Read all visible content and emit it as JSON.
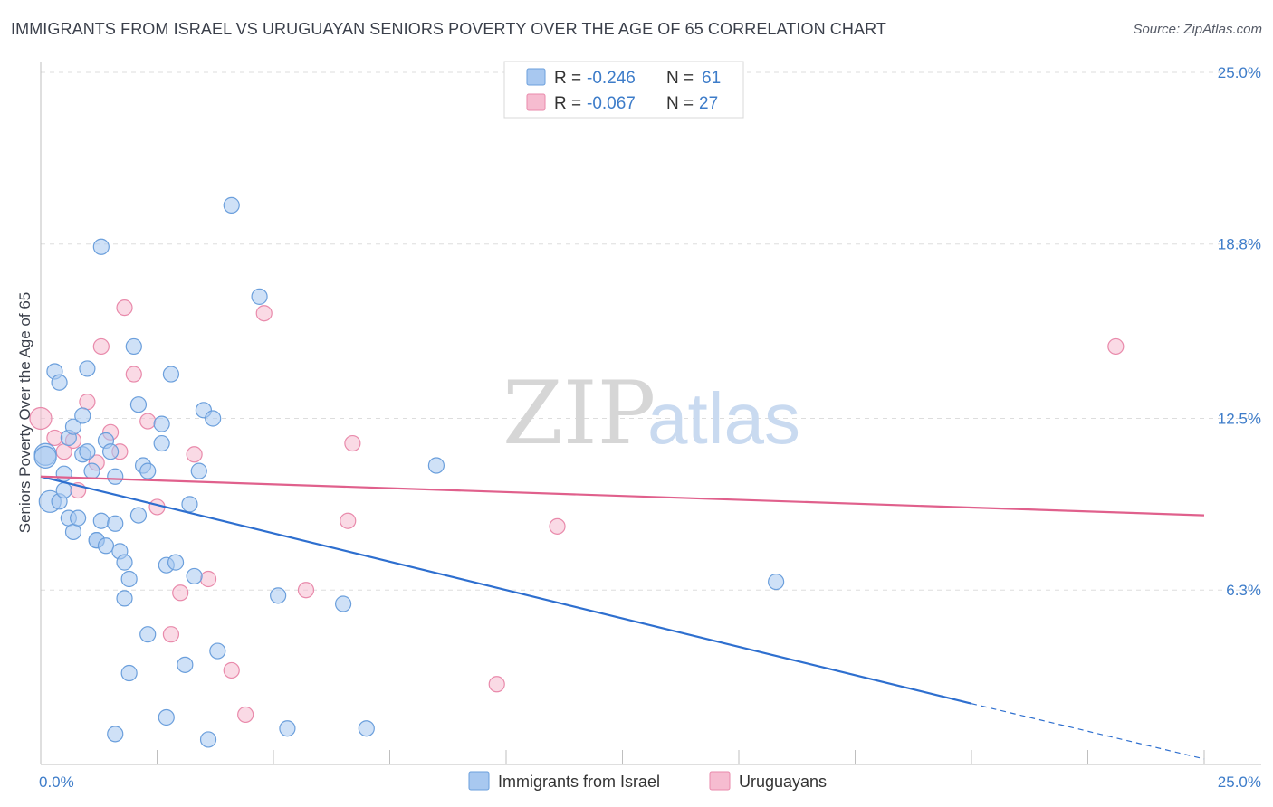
{
  "title": "IMMIGRANTS FROM ISRAEL VS URUGUAYAN SENIORS POVERTY OVER THE AGE OF 65 CORRELATION CHART",
  "source": "Source: ZipAtlas.com",
  "watermark": {
    "zip": "ZIP",
    "atlas": "atlas"
  },
  "colors": {
    "blue_fill": "#a8c8f0",
    "blue_stroke": "#6b9fdc",
    "blue_line": "#2e6fcf",
    "pink_fill": "#f6bcd0",
    "pink_stroke": "#e98aab",
    "pink_line": "#e0608c",
    "tick_text": "#3d7cc9",
    "grid": "#dddddd"
  },
  "legend": {
    "rows": [
      {
        "r_label": "R = ",
        "r_value": "-0.246",
        "n_label": "N = ",
        "n_value": "61"
      },
      {
        "r_label": "R = ",
        "r_value": "-0.067",
        "n_label": "N = ",
        "n_value": "27"
      }
    ]
  },
  "chart_data": {
    "type": "scatter",
    "title": "IMMIGRANTS FROM ISRAEL VS URUGUAYAN SENIORS POVERTY OVER THE AGE OF 65 CORRELATION CHART",
    "xlabel": "",
    "ylabel": "Seniors Poverty Over the Age of 65",
    "xlim": [
      0,
      25
    ],
    "ylim": [
      0,
      25
    ],
    "x_tick_labels": [
      "0.0%",
      "25.0%"
    ],
    "y_ticks": [
      6.3,
      12.5,
      18.8,
      25.0
    ],
    "y_tick_labels": [
      "6.3%",
      "12.5%",
      "18.8%",
      "25.0%"
    ],
    "grid": true,
    "legend_position": "top-center",
    "series": [
      {
        "name": "Immigrants from Israel",
        "color": "#a8c8f0",
        "trend": {
          "x": [
            0,
            20
          ],
          "y": [
            10.4,
            2.2
          ],
          "dashed_to": [
            25,
            0.2
          ]
        },
        "points": [
          [
            0.1,
            11.2
          ],
          [
            0.2,
            9.5
          ],
          [
            0.3,
            14.2
          ],
          [
            0.4,
            13.8
          ],
          [
            0.4,
            9.5
          ],
          [
            0.5,
            10.5
          ],
          [
            0.5,
            9.9
          ],
          [
            0.6,
            11.8
          ],
          [
            0.6,
            8.9
          ],
          [
            0.7,
            12.2
          ],
          [
            0.7,
            8.4
          ],
          [
            0.8,
            8.9
          ],
          [
            0.9,
            12.6
          ],
          [
            0.9,
            11.2
          ],
          [
            1.0,
            14.3
          ],
          [
            1.0,
            11.3
          ],
          [
            1.1,
            10.6
          ],
          [
            1.2,
            8.1
          ],
          [
            1.2,
            8.1
          ],
          [
            1.3,
            18.7
          ],
          [
            1.3,
            8.8
          ],
          [
            1.4,
            11.7
          ],
          [
            1.4,
            7.9
          ],
          [
            1.5,
            11.3
          ],
          [
            1.6,
            10.4
          ],
          [
            1.6,
            8.7
          ],
          [
            1.7,
            7.7
          ],
          [
            1.8,
            7.3
          ],
          [
            1.8,
            6.0
          ],
          [
            1.9,
            6.7
          ],
          [
            1.9,
            3.3
          ],
          [
            2.0,
            15.1
          ],
          [
            2.1,
            13.0
          ],
          [
            2.1,
            9.0
          ],
          [
            2.2,
            10.8
          ],
          [
            2.3,
            10.6
          ],
          [
            2.3,
            4.7
          ],
          [
            2.6,
            12.3
          ],
          [
            2.6,
            11.6
          ],
          [
            2.7,
            7.2
          ],
          [
            2.8,
            14.1
          ],
          [
            2.9,
            7.3
          ],
          [
            3.1,
            3.6
          ],
          [
            3.2,
            9.4
          ],
          [
            3.3,
            6.8
          ],
          [
            3.4,
            10.6
          ],
          [
            3.5,
            12.8
          ],
          [
            3.7,
            12.5
          ],
          [
            3.8,
            4.1
          ],
          [
            4.1,
            20.2
          ],
          [
            4.7,
            16.9
          ],
          [
            5.1,
            6.1
          ],
          [
            5.3,
            1.3
          ],
          [
            6.5,
            5.8
          ],
          [
            7.0,
            1.3
          ],
          [
            8.5,
            10.8
          ],
          [
            15.8,
            6.6
          ],
          [
            1.6,
            1.1
          ],
          [
            2.7,
            1.7
          ],
          [
            3.6,
            0.9
          ],
          [
            0.1,
            11.1
          ]
        ]
      },
      {
        "name": "Uruguayans",
        "color": "#f6bcd0",
        "trend": {
          "x": [
            0,
            25
          ],
          "y": [
            10.4,
            9.0
          ]
        },
        "points": [
          [
            0.0,
            12.5
          ],
          [
            0.3,
            11.8
          ],
          [
            0.5,
            11.3
          ],
          [
            0.7,
            11.7
          ],
          [
            0.8,
            9.9
          ],
          [
            1.0,
            13.1
          ],
          [
            1.2,
            10.9
          ],
          [
            1.3,
            15.1
          ],
          [
            1.5,
            12.0
          ],
          [
            1.7,
            11.3
          ],
          [
            1.8,
            16.5
          ],
          [
            2.0,
            14.1
          ],
          [
            2.3,
            12.4
          ],
          [
            2.5,
            9.3
          ],
          [
            2.8,
            4.7
          ],
          [
            3.0,
            6.2
          ],
          [
            3.3,
            11.2
          ],
          [
            3.6,
            6.7
          ],
          [
            4.1,
            3.4
          ],
          [
            4.4,
            1.8
          ],
          [
            4.8,
            16.3
          ],
          [
            5.7,
            6.3
          ],
          [
            6.6,
            8.8
          ],
          [
            6.7,
            11.6
          ],
          [
            9.8,
            2.9
          ],
          [
            11.1,
            8.6
          ],
          [
            23.1,
            15.1
          ]
        ]
      }
    ]
  }
}
